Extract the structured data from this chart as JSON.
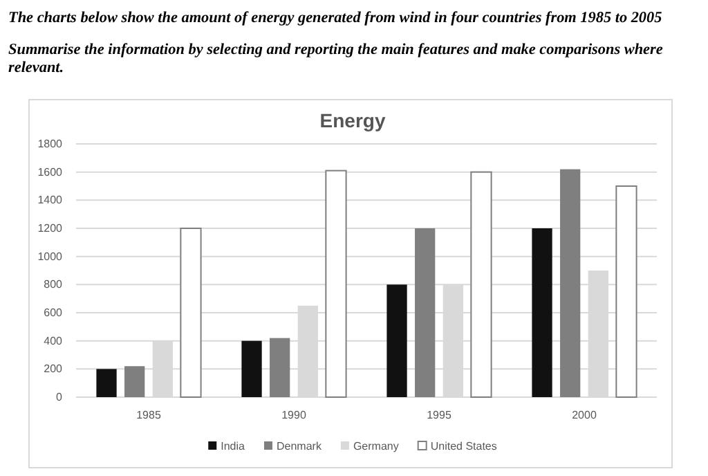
{
  "chart_data": {
    "type": "bar",
    "title": "Energy",
    "annotations": [
      "The charts below show the amount of energy generated from wind in four countries from 1985 to 2005",
      "Summarise the information by selecting and reporting the main features and make comparisons where relevant."
    ],
    "categories": [
      "1985",
      "1990",
      "1995",
      "2000"
    ],
    "series": [
      {
        "name": "India",
        "color": "#111111",
        "values": [
          200,
          400,
          800,
          1200
        ]
      },
      {
        "name": "Denmark",
        "color": "#7f7f7f",
        "values": [
          220,
          420,
          1200,
          1620
        ]
      },
      {
        "name": "Germany",
        "color": "#d9d9d9",
        "values": [
          400,
          650,
          800,
          900
        ]
      },
      {
        "name": "United States",
        "color": "#ffffff",
        "values": [
          1200,
          1610,
          1600,
          1500
        ]
      }
    ],
    "ylim": [
      0,
      1800
    ],
    "yticks": [
      0,
      200,
      400,
      600,
      800,
      1000,
      1200,
      1400,
      1600,
      1800
    ],
    "grid": "y",
    "legend": "bottom"
  }
}
